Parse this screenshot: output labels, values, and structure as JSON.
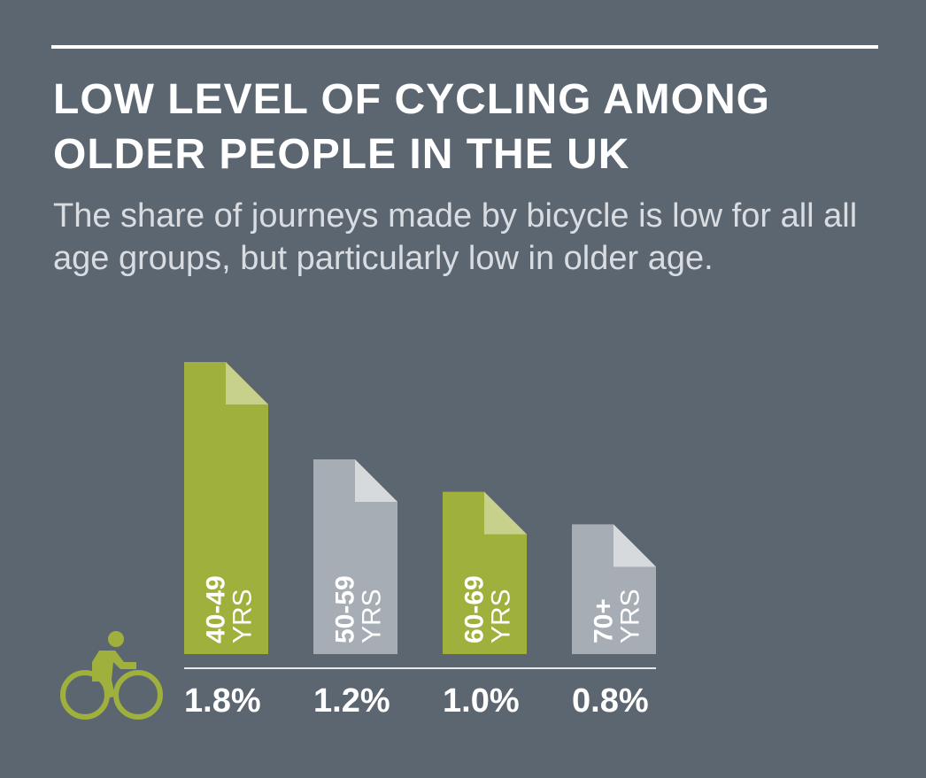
{
  "title": "LOW LEVEL OF CYCLING AMONG OLDER PEOPLE IN THE UK",
  "subtitle": "The share of journeys made by bicycle is low for all all age groups, but particularly low in older age.",
  "icon": "cyclist-icon",
  "colors": {
    "background": "#5c6670",
    "green": "#a0b03c",
    "green_fold": "#c7d18c",
    "grey": "#a7adb4",
    "grey_fold": "#d7dadd",
    "text": "#ffffff",
    "baseline": "#e6e8ea"
  },
  "chart_data": {
    "type": "bar",
    "categories": [
      "40-49 YRS",
      "50-59 YRS",
      "60-69 YRS",
      "70+ YRS"
    ],
    "category_parts": [
      {
        "num": "40-49",
        "unit": "YRS"
      },
      {
        "num": "50-59",
        "unit": "YRS"
      },
      {
        "num": "60-69",
        "unit": "YRS"
      },
      {
        "num": "70+",
        "unit": "YRS"
      }
    ],
    "values": [
      1.8,
      1.2,
      1.0,
      0.8
    ],
    "value_labels": [
      "1.8%",
      "1.2%",
      "1.0%",
      "0.8%"
    ],
    "bar_colors": [
      "green",
      "grey",
      "green",
      "grey"
    ],
    "ylim": [
      0,
      1.8
    ],
    "grid": false
  }
}
